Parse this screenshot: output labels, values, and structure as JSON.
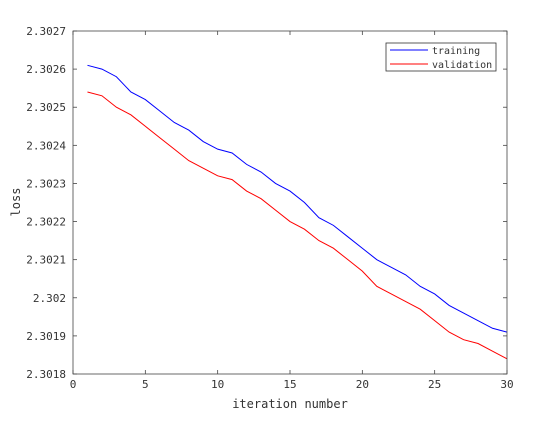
{
  "chart_data": {
    "type": "line",
    "xlabel": "iteration number",
    "ylabel": "loss",
    "xlim": [
      0,
      30
    ],
    "ylim": [
      2.3018,
      2.3027
    ],
    "xticks": [
      0,
      5,
      10,
      15,
      20,
      25,
      30
    ],
    "xtick_labels": [
      "0",
      "5",
      "10",
      "15",
      "20",
      "25",
      "30"
    ],
    "yticks": [
      2.3018,
      2.3019,
      2.302,
      2.3021,
      2.3022,
      2.3023,
      2.3024,
      2.3025,
      2.3026,
      2.3027
    ],
    "ytick_labels": [
      "2.3018",
      "2.3019",
      "2.302",
      "2.3021",
      "2.3022",
      "2.3023",
      "2.3024",
      "2.3025",
      "2.3026",
      "2.3027"
    ],
    "grid": false,
    "legend_position": "top-right",
    "x": [
      1,
      2,
      3,
      4,
      5,
      6,
      7,
      8,
      9,
      10,
      11,
      12,
      13,
      14,
      15,
      16,
      17,
      18,
      19,
      20,
      21,
      22,
      23,
      24,
      25,
      26,
      27,
      28,
      29,
      30
    ],
    "series": [
      {
        "name": "training",
        "color": "#0000ff",
        "values": [
          2.30261,
          2.3026,
          2.30258,
          2.30254,
          2.30252,
          2.30249,
          2.30246,
          2.30244,
          2.30241,
          2.30239,
          2.30238,
          2.30235,
          2.30233,
          2.3023,
          2.30228,
          2.30225,
          2.30221,
          2.30219,
          2.30216,
          2.30213,
          2.3021,
          2.30208,
          2.30206,
          2.30203,
          2.30201,
          2.30198,
          2.30196,
          2.30194,
          2.30192,
          2.30191
        ]
      },
      {
        "name": "validation",
        "color": "#ff0000",
        "values": [
          2.30254,
          2.30253,
          2.3025,
          2.30248,
          2.30245,
          2.30242,
          2.30239,
          2.30236,
          2.30234,
          2.30232,
          2.30231,
          2.30228,
          2.30226,
          2.30223,
          2.3022,
          2.30218,
          2.30215,
          2.30213,
          2.3021,
          2.30207,
          2.30203,
          2.30201,
          2.30199,
          2.30197,
          2.30194,
          2.30191,
          2.30189,
          2.30188,
          2.30186,
          2.30184
        ]
      }
    ]
  }
}
